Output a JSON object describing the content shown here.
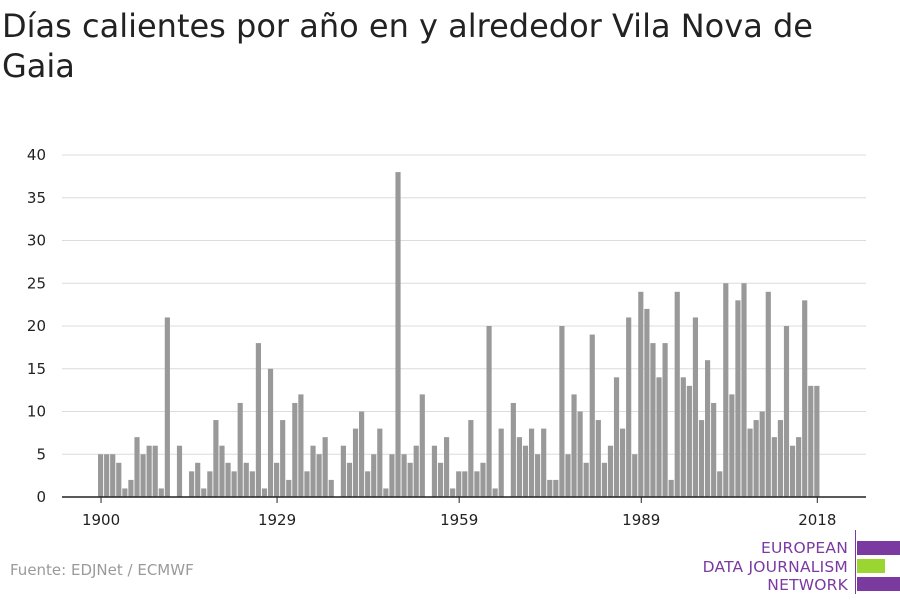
{
  "title": "Días calientes por año en y alrededor Vila Nova de Gaia",
  "source": "Fuente: EDJNet / ECMWF",
  "logo": {
    "lines": [
      "EUROPEAN",
      "DATA JOURNALISM",
      "NETWORK"
    ],
    "colors": {
      "purple": "#7b3aa0",
      "green": "#9bd531"
    }
  },
  "colors": {
    "bar": "#999999",
    "grid": "#dcdcdc",
    "axis": "#222222"
  },
  "chart_data": {
    "type": "bar",
    "title": "Días calientes por año en y alrededor Vila Nova de Gaia",
    "xlabel": "",
    "ylabel": "",
    "x_tick_labels": [
      "1900",
      "1929",
      "1959",
      "1989",
      "2018"
    ],
    "y_ticks": [
      0,
      5,
      10,
      15,
      20,
      25,
      30,
      35,
      40
    ],
    "ylim": [
      0,
      40
    ],
    "grid": true,
    "x": [
      1900,
      1901,
      1902,
      1903,
      1904,
      1905,
      1906,
      1907,
      1908,
      1909,
      1910,
      1911,
      1912,
      1913,
      1914,
      1915,
      1916,
      1917,
      1918,
      1919,
      1920,
      1921,
      1922,
      1923,
      1924,
      1925,
      1926,
      1927,
      1928,
      1929,
      1930,
      1931,
      1932,
      1933,
      1934,
      1935,
      1936,
      1937,
      1938,
      1939,
      1940,
      1941,
      1942,
      1943,
      1944,
      1945,
      1946,
      1947,
      1948,
      1949,
      1950,
      1951,
      1952,
      1953,
      1954,
      1955,
      1956,
      1957,
      1958,
      1959,
      1960,
      1961,
      1962,
      1963,
      1964,
      1965,
      1966,
      1967,
      1968,
      1969,
      1970,
      1971,
      1972,
      1973,
      1974,
      1975,
      1976,
      1977,
      1978,
      1979,
      1980,
      1981,
      1982,
      1983,
      1984,
      1985,
      1986,
      1987,
      1988,
      1989,
      1990,
      1991,
      1992,
      1993,
      1994,
      1995,
      1996,
      1997,
      1998,
      1999,
      2000,
      2001,
      2002,
      2003,
      2004,
      2005,
      2006,
      2007,
      2008,
      2009,
      2010,
      2011,
      2012,
      2013,
      2014,
      2015,
      2016,
      2017,
      2018,
      2019
    ],
    "values": [
      5,
      5,
      5,
      4,
      1,
      2,
      7,
      5,
      6,
      6,
      1,
      21,
      0,
      6,
      0,
      3,
      4,
      1,
      3,
      9,
      6,
      4,
      3,
      11,
      4,
      3,
      18,
      1,
      15,
      4,
      9,
      2,
      11,
      12,
      3,
      6,
      5,
      7,
      2,
      0,
      6,
      4,
      8,
      10,
      3,
      5,
      8,
      1,
      5,
      38,
      5,
      4,
      6,
      12,
      0,
      6,
      4,
      7,
      1,
      3,
      3,
      9,
      3,
      4,
      20,
      1,
      8,
      0,
      11,
      7,
      6,
      8,
      5,
      8,
      2,
      2,
      20,
      5,
      12,
      10,
      4,
      19,
      9,
      4,
      6,
      14,
      8,
      21,
      5,
      24,
      22,
      18,
      14,
      18,
      2,
      24,
      14,
      13,
      21,
      9,
      16,
      11,
      3,
      25,
      12,
      23,
      25,
      8,
      9,
      10,
      24,
      7,
      9,
      20,
      6,
      7,
      23,
      13,
      13,
      0
    ]
  }
}
